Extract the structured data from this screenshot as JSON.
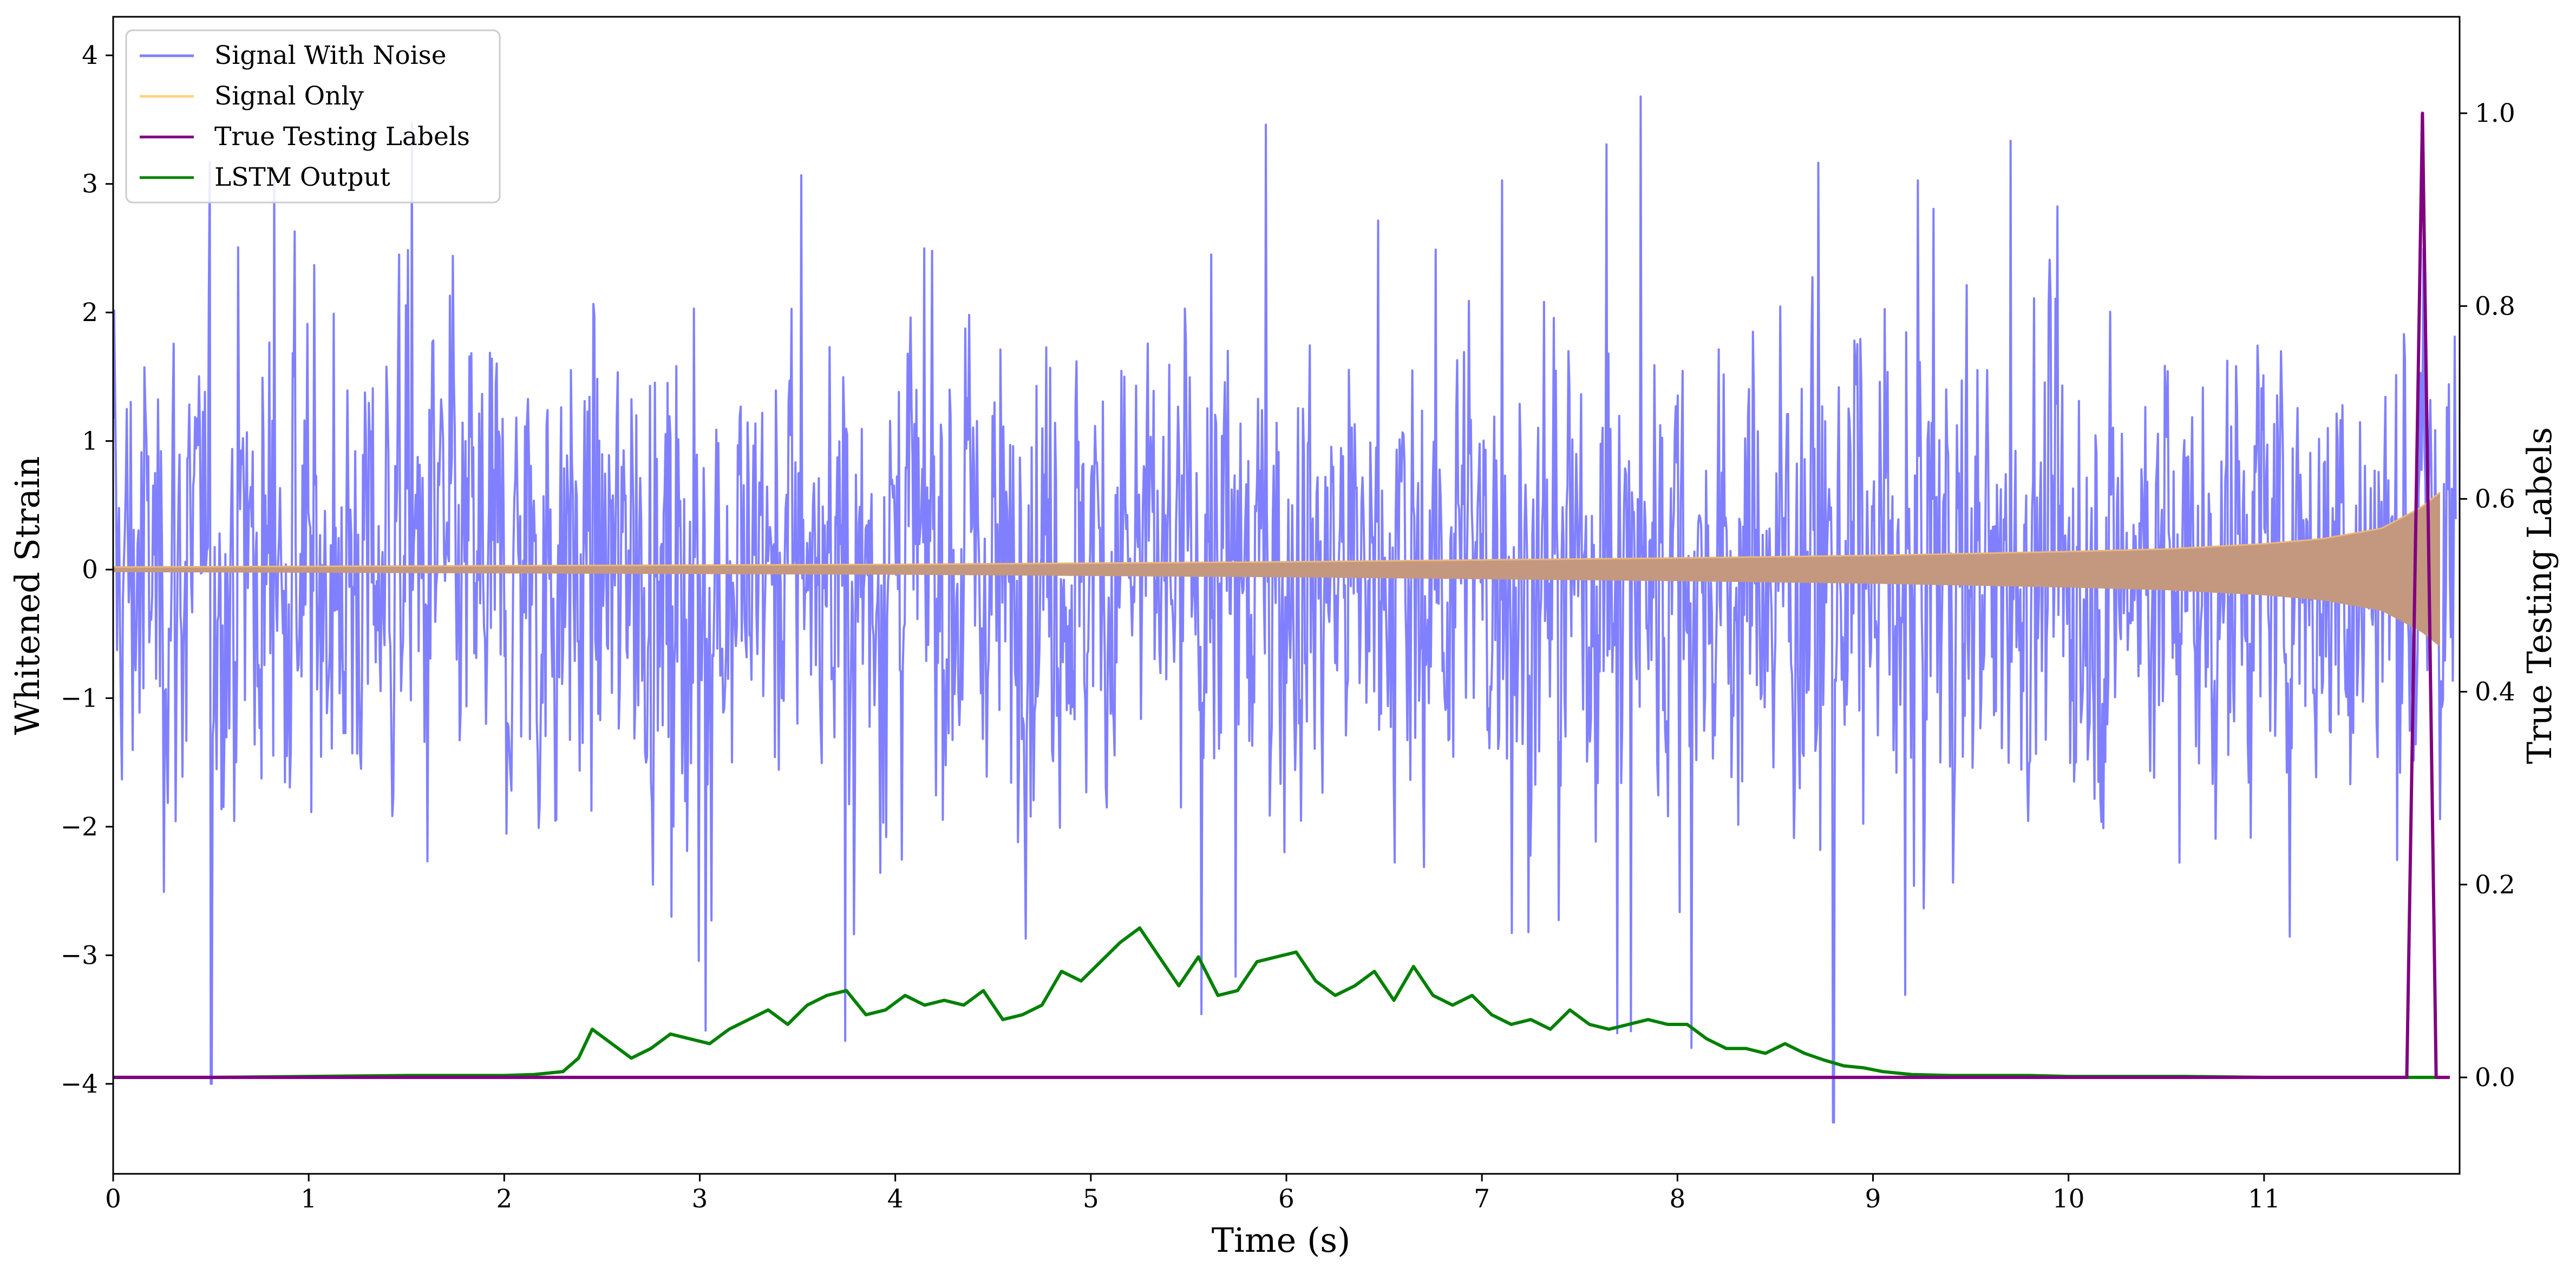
{
  "chart_data": {
    "type": "line",
    "xlabel": "Time (s)",
    "ylabel": "Whitened Strain",
    "y2label": "True Testing Labels",
    "xlim": [
      0,
      12
    ],
    "ylim": [
      -4.7,
      4.3
    ],
    "y2lim": [
      -0.1,
      1.1
    ],
    "xticks": [
      "0",
      "1",
      "2",
      "3",
      "4",
      "5",
      "6",
      "7",
      "8",
      "9",
      "10",
      "11"
    ],
    "yticks": [
      "−4",
      "−3",
      "−2",
      "−1",
      "0",
      "1",
      "2",
      "3",
      "4"
    ],
    "y2ticks": [
      "0.0",
      "0.2",
      "0.4",
      "0.6",
      "0.8",
      "1.0"
    ],
    "grid": false,
    "legend_position": "top-left",
    "series": [
      {
        "name": "Signal With Noise",
        "axis": "left",
        "color": "#8080ff",
        "description_values": {
          "typical_amplitude": 1.1,
          "peak_max": 3.9,
          "peak_min": -4.3,
          "spike_times": [
            0.5,
            8.8
          ]
        }
      },
      {
        "name": "Signal Only",
        "axis": "left",
        "color": "#ffd580",
        "envelope": {
          "t": [
            0,
            2,
            4,
            6,
            8,
            9,
            10,
            10.5,
            11,
            11.3,
            11.6,
            11.8,
            11.9,
            12
          ],
          "amp": [
            0.02,
            0.03,
            0.04,
            0.06,
            0.09,
            0.11,
            0.14,
            0.16,
            0.2,
            0.24,
            0.32,
            0.48,
            0.6,
            0.0
          ]
        }
      },
      {
        "name": "True Testing Labels",
        "axis": "right",
        "color": "#800080",
        "x": [
          0,
          11.73,
          11.81,
          11.88,
          11.95
        ],
        "y": [
          0,
          0,
          1.0,
          0,
          0
        ]
      },
      {
        "name": "LSTM Output",
        "axis": "right",
        "color": "#008000",
        "x": [
          0,
          0.5,
          1.0,
          1.5,
          2.0,
          2.15,
          2.3,
          2.38,
          2.45,
          2.55,
          2.65,
          2.75,
          2.85,
          2.95,
          3.05,
          3.15,
          3.25,
          3.35,
          3.45,
          3.55,
          3.65,
          3.75,
          3.85,
          3.95,
          4.05,
          4.15,
          4.25,
          4.35,
          4.45,
          4.55,
          4.65,
          4.75,
          4.85,
          4.95,
          5.05,
          5.15,
          5.25,
          5.35,
          5.45,
          5.55,
          5.65,
          5.75,
          5.85,
          5.95,
          6.05,
          6.15,
          6.25,
          6.35,
          6.45,
          6.55,
          6.65,
          6.75,
          6.85,
          6.95,
          7.05,
          7.15,
          7.25,
          7.35,
          7.45,
          7.55,
          7.65,
          7.75,
          7.85,
          7.95,
          8.05,
          8.15,
          8.25,
          8.35,
          8.45,
          8.55,
          8.65,
          8.75,
          8.85,
          8.95,
          9.05,
          9.2,
          9.4,
          9.6,
          9.8,
          10.0,
          10.3,
          10.6,
          11.0,
          11.5,
          11.9
        ],
        "y": [
          0.0,
          0.0,
          0.001,
          0.002,
          0.002,
          0.003,
          0.006,
          0.02,
          0.05,
          0.035,
          0.02,
          0.03,
          0.045,
          0.04,
          0.035,
          0.05,
          0.06,
          0.07,
          0.055,
          0.075,
          0.085,
          0.09,
          0.065,
          0.07,
          0.085,
          0.075,
          0.08,
          0.075,
          0.09,
          0.06,
          0.065,
          0.075,
          0.11,
          0.1,
          0.12,
          0.14,
          0.155,
          0.125,
          0.095,
          0.125,
          0.085,
          0.09,
          0.12,
          0.125,
          0.13,
          0.1,
          0.085,
          0.095,
          0.11,
          0.08,
          0.115,
          0.085,
          0.075,
          0.085,
          0.065,
          0.055,
          0.06,
          0.05,
          0.07,
          0.055,
          0.05,
          0.055,
          0.06,
          0.055,
          0.055,
          0.04,
          0.03,
          0.03,
          0.025,
          0.035,
          0.025,
          0.018,
          0.012,
          0.01,
          0.006,
          0.003,
          0.002,
          0.002,
          0.002,
          0.001,
          0.001,
          0.001,
          0.0,
          0.0,
          0.0
        ]
      }
    ]
  }
}
